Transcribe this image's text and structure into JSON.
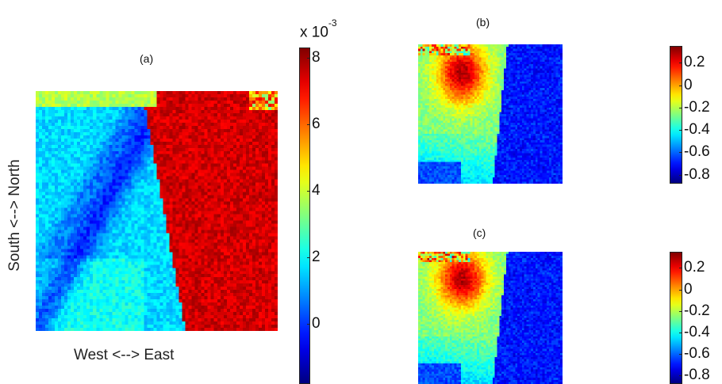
{
  "panels": [
    {
      "id": "a",
      "title": "(a)",
      "xlabel": "West <--> East",
      "ylabel": "South <--> North",
      "colorbar": {
        "multiplier": "x 10",
        "exponent": "-3",
        "ticks": [
          "8",
          "6",
          "4",
          "2",
          "0"
        ],
        "tick_values": [
          8,
          6,
          4,
          2,
          0
        ],
        "range": [
          -1.8,
          8.3
        ]
      }
    },
    {
      "id": "b",
      "title": "(b)",
      "colorbar": {
        "ticks": [
          "0.2",
          "0",
          "-0.2",
          "-0.4",
          "-0.6",
          "-0.8"
        ],
        "tick_values": [
          0.2,
          0,
          -0.2,
          -0.4,
          -0.6,
          -0.8
        ],
        "range": [
          -0.88,
          0.35
        ]
      }
    },
    {
      "id": "c",
      "title": "(c)",
      "colorbar": {
        "ticks": [
          "0.2",
          "0",
          "-0.2",
          "-0.4",
          "-0.6",
          "-0.8"
        ],
        "tick_values": [
          0.2,
          0,
          -0.2,
          -0.4,
          -0.6,
          -0.8
        ],
        "range": [
          -0.88,
          0.35
        ]
      }
    }
  ],
  "chart_data": [
    {
      "type": "heatmap",
      "title": "(a)",
      "xlabel": "West <--> East",
      "ylabel": "South <--> North",
      "colormap": "jet",
      "color_range": [
        -0.0018,
        0.0083
      ],
      "colorbar_label": "x 10^-3"
    },
    {
      "type": "heatmap",
      "title": "(b)",
      "colormap": "jet",
      "color_range": [
        -0.88,
        0.35
      ]
    },
    {
      "type": "heatmap",
      "title": "(c)",
      "colormap": "jet",
      "color_range": [
        -0.88,
        0.35
      ]
    }
  ]
}
